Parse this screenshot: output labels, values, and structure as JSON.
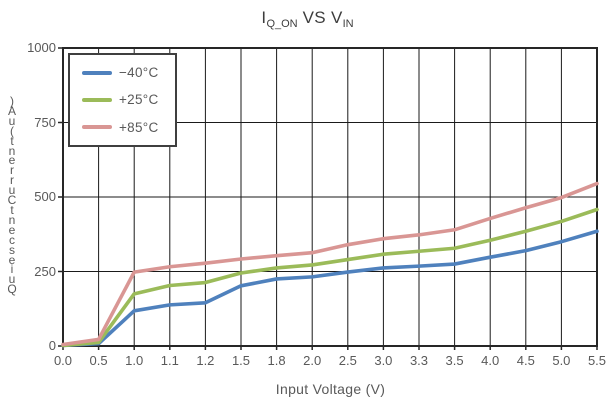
{
  "title": {
    "segments": [
      {
        "text": "I",
        "sub": false
      },
      {
        "text": "Q_ON",
        "sub": true
      },
      {
        "text": " VS V",
        "sub": false
      },
      {
        "text": "IN",
        "sub": true
      }
    ],
    "plain": "I_Q_ON VS V_IN"
  },
  "chart_data": {
    "type": "line",
    "title": "I_Q_ON VS V_IN",
    "xlabel": "Input Voltage (V)",
    "ylabel": "Quiescent Current (uA)",
    "x_axis_categorical": true,
    "categories": [
      "0.0",
      "0.5",
      "1.0",
      "1.1",
      "1.2",
      "1.5",
      "1.8",
      "2.0",
      "2.5",
      "3.0",
      "3.3",
      "3.5",
      "4.0",
      "4.5",
      "5.0",
      "5.5"
    ],
    "ylim": [
      0,
      1000
    ],
    "yticks": [
      0,
      250,
      500,
      750,
      1000
    ],
    "grid": true,
    "legend_position": "top-left",
    "series": [
      {
        "name": "−40°C",
        "color": "#4F81BD",
        "values": [
          2,
          8,
          118,
          138,
          145,
          202,
          225,
          232,
          248,
          262,
          268,
          275,
          298,
          320,
          350,
          385
        ]
      },
      {
        "name": "+25°C",
        "color": "#9BBB59",
        "values": [
          2,
          12,
          175,
          203,
          213,
          245,
          262,
          272,
          290,
          308,
          318,
          328,
          355,
          385,
          418,
          458
        ]
      },
      {
        "name": "+85°C",
        "color": "#D99694",
        "values": [
          5,
          22,
          248,
          266,
          278,
          292,
          303,
          313,
          340,
          360,
          373,
          390,
          428,
          464,
          498,
          545
        ]
      }
    ]
  },
  "colors": {
    "grid": "#1a1a1a",
    "border": "#262626",
    "tick_text": "#595959",
    "title_text": "#3d3d3d"
  }
}
